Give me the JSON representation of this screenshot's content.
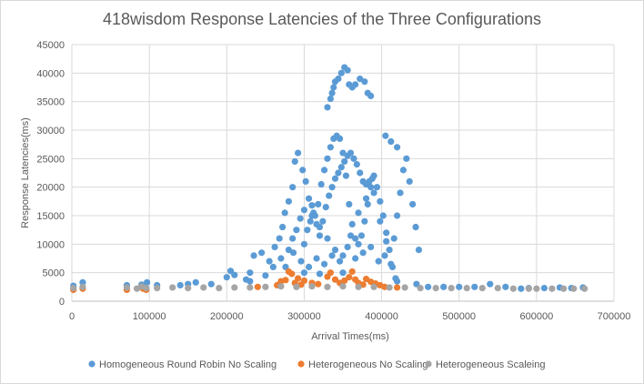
{
  "chart_data": {
    "type": "scatter",
    "title": "418wisdom Response Latencies of the Three Configurations",
    "xlabel": "Arrival Times(ms)",
    "ylabel": "Response Latencies(ms)",
    "xlim": [
      0,
      700000
    ],
    "ylim": [
      0,
      45000
    ],
    "x_ticks": [
      "0",
      "100000",
      "200000",
      "300000",
      "400000",
      "500000",
      "600000",
      "700000"
    ],
    "y_ticks": [
      "0",
      "5000",
      "10000",
      "15000",
      "20000",
      "25000",
      "30000",
      "35000",
      "40000",
      "45000"
    ],
    "grid": "horizontal and vertical",
    "legend_position": "bottom",
    "series": [
      {
        "name": "Homogeneous Round Robin No Scaling",
        "color": "#5B9BD5",
        "points": [
          [
            2000,
            2700
          ],
          [
            14000,
            3300
          ],
          [
            71000,
            2800
          ],
          [
            90000,
            2900
          ],
          [
            97000,
            3300
          ],
          [
            110000,
            2800
          ],
          [
            140000,
            2800
          ],
          [
            160000,
            3300
          ],
          [
            180000,
            3000
          ],
          [
            200000,
            4200
          ],
          [
            205000,
            5300
          ],
          [
            210000,
            4600
          ],
          [
            225000,
            3800
          ],
          [
            230000,
            5000
          ],
          [
            235000,
            8000
          ],
          [
            245000,
            8500
          ],
          [
            255000,
            7000
          ],
          [
            262000,
            9500
          ],
          [
            268000,
            11000
          ],
          [
            272000,
            13000
          ],
          [
            275000,
            15500
          ],
          [
            280000,
            17500
          ],
          [
            285000,
            20000
          ],
          [
            288000,
            24500
          ],
          [
            292000,
            26000
          ],
          [
            298000,
            23000
          ],
          [
            302000,
            21000
          ],
          [
            306000,
            18000
          ],
          [
            310000,
            16800
          ],
          [
            314000,
            15000
          ],
          [
            318000,
            17000
          ],
          [
            322000,
            20500
          ],
          [
            326000,
            23000
          ],
          [
            330000,
            25000
          ],
          [
            334000,
            27000
          ],
          [
            338000,
            28500
          ],
          [
            342000,
            29000
          ],
          [
            346000,
            28500
          ],
          [
            350000,
            26000
          ],
          [
            354000,
            22000
          ],
          [
            358000,
            17000
          ],
          [
            362000,
            13500
          ],
          [
            366000,
            11000
          ],
          [
            370000,
            10000
          ],
          [
            374000,
            11500
          ],
          [
            378000,
            14000
          ],
          [
            382000,
            17000
          ],
          [
            386000,
            20000
          ],
          [
            390000,
            22000
          ],
          [
            394000,
            20000
          ],
          [
            398000,
            17500
          ],
          [
            402000,
            15000
          ],
          [
            406000,
            12000
          ],
          [
            410000,
            9000
          ],
          [
            414000,
            6000
          ],
          [
            418000,
            4000
          ],
          [
            330000,
            34000
          ],
          [
            334000,
            35500
          ],
          [
            336000,
            36500
          ],
          [
            338000,
            37500
          ],
          [
            340000,
            38500
          ],
          [
            344000,
            39000
          ],
          [
            348000,
            40000
          ],
          [
            352000,
            41000
          ],
          [
            356000,
            40500
          ],
          [
            358000,
            38000
          ],
          [
            362000,
            37500
          ],
          [
            366000,
            38000
          ],
          [
            372000,
            39000
          ],
          [
            378000,
            38500
          ],
          [
            382000,
            36500
          ],
          [
            386000,
            36000
          ],
          [
            300000,
            10000
          ],
          [
            304000,
            12500
          ],
          [
            308000,
            14000
          ],
          [
            312000,
            15500
          ],
          [
            316000,
            13500
          ],
          [
            320000,
            11500
          ],
          [
            324000,
            14000
          ],
          [
            328000,
            16500
          ],
          [
            332000,
            18500
          ],
          [
            336000,
            20000
          ],
          [
            340000,
            21500
          ],
          [
            344000,
            22500
          ],
          [
            348000,
            23500
          ],
          [
            352000,
            24500
          ],
          [
            356000,
            25500
          ],
          [
            360000,
            26000
          ],
          [
            364000,
            25000
          ],
          [
            368000,
            24000
          ],
          [
            372000,
            22500
          ],
          [
            376000,
            21000
          ],
          [
            380000,
            20500
          ],
          [
            384000,
            21000
          ],
          [
            388000,
            21500
          ],
          [
            280000,
            9000
          ],
          [
            285000,
            11000
          ],
          [
            290000,
            12500
          ],
          [
            295000,
            14500
          ],
          [
            300000,
            16000
          ],
          [
            310000,
            15000
          ],
          [
            320000,
            13000
          ],
          [
            330000,
            11000
          ],
          [
            340000,
            9000
          ],
          [
            350000,
            8000
          ],
          [
            360000,
            11500
          ],
          [
            370000,
            15500
          ],
          [
            380000,
            18000
          ],
          [
            390000,
            19000
          ],
          [
            398000,
            14000
          ],
          [
            404000,
            8000
          ],
          [
            412000,
            6500
          ],
          [
            416000,
            11000
          ],
          [
            420000,
            15000
          ],
          [
            424000,
            19000
          ],
          [
            428000,
            23000
          ],
          [
            432000,
            25000
          ],
          [
            436000,
            21000
          ],
          [
            440000,
            17000
          ],
          [
            444000,
            13000
          ],
          [
            448000,
            9000
          ],
          [
            405000,
            29000
          ],
          [
            412000,
            28000
          ],
          [
            420000,
            27000
          ],
          [
            260000,
            6000
          ],
          [
            270000,
            7500
          ],
          [
            276000,
            6000
          ],
          [
            286000,
            8500
          ],
          [
            296000,
            7000
          ],
          [
            306000,
            6000
          ],
          [
            316000,
            7500
          ],
          [
            326000,
            6500
          ],
          [
            336000,
            8000
          ],
          [
            346000,
            7000
          ],
          [
            356000,
            9500
          ],
          [
            366000,
            7500
          ],
          [
            376000,
            8500
          ],
          [
            386000,
            9500
          ],
          [
            396000,
            7000
          ],
          [
            406000,
            10500
          ],
          [
            150000,
            3000
          ],
          [
            230000,
            3500
          ],
          [
            250000,
            4500
          ],
          [
            300000,
            5000
          ],
          [
            320000,
            4800
          ],
          [
            350000,
            5000
          ],
          [
            420000,
            3500
          ],
          [
            445000,
            3000
          ],
          [
            460000,
            2500
          ],
          [
            480000,
            2500
          ],
          [
            500000,
            2500
          ],
          [
            520000,
            2500
          ],
          [
            540000,
            3000
          ],
          [
            560000,
            2500
          ],
          [
            580000,
            2200
          ],
          [
            590000,
            2300
          ],
          [
            610000,
            2300
          ],
          [
            630000,
            2400
          ],
          [
            645000,
            2300
          ],
          [
            660000,
            2400
          ]
        ]
      },
      {
        "name": "Heterogeneous No Scaling",
        "color": "#ED7D31",
        "points": [
          [
            2000,
            2000
          ],
          [
            14000,
            2200
          ],
          [
            71000,
            2000
          ],
          [
            92000,
            2200
          ],
          [
            96000,
            2000
          ],
          [
            240000,
            2500
          ],
          [
            265000,
            2800
          ],
          [
            270000,
            3500
          ],
          [
            276000,
            3700
          ],
          [
            280000,
            5200
          ],
          [
            284000,
            4800
          ],
          [
            288000,
            3200
          ],
          [
            292000,
            4000
          ],
          [
            296000,
            2900
          ],
          [
            300000,
            3600
          ],
          [
            310000,
            3200
          ],
          [
            318000,
            3000
          ],
          [
            330000,
            4300
          ],
          [
            334000,
            5000
          ],
          [
            340000,
            3800
          ],
          [
            346000,
            3200
          ],
          [
            352000,
            3600
          ],
          [
            358000,
            4200
          ],
          [
            362000,
            5200
          ],
          [
            366000,
            3800
          ],
          [
            370000,
            3200
          ],
          [
            376000,
            2900
          ],
          [
            380000,
            3900
          ],
          [
            386000,
            3400
          ],
          [
            392000,
            3100
          ],
          [
            398000,
            2800
          ],
          [
            404000,
            2500
          ],
          [
            420000,
            2400
          ]
        ]
      },
      {
        "name": "Heterogeneous Scaleing",
        "color": "#A5A5A5",
        "points": [
          [
            2000,
            2300
          ],
          [
            14000,
            2500
          ],
          [
            71000,
            2400
          ],
          [
            84000,
            2200
          ],
          [
            90000,
            2600
          ],
          [
            96000,
            2300
          ],
          [
            110000,
            2300
          ],
          [
            130000,
            2400
          ],
          [
            150000,
            2300
          ],
          [
            170000,
            2400
          ],
          [
            190000,
            2300
          ],
          [
            210000,
            2400
          ],
          [
            230000,
            2400
          ],
          [
            250000,
            2500
          ],
          [
            270000,
            2600
          ],
          [
            290000,
            2500
          ],
          [
            310000,
            2600
          ],
          [
            330000,
            2500
          ],
          [
            350000,
            2600
          ],
          [
            370000,
            2500
          ],
          [
            390000,
            2500
          ],
          [
            410000,
            2400
          ],
          [
            430000,
            2400
          ],
          [
            450000,
            2300
          ],
          [
            470000,
            2300
          ],
          [
            490000,
            2300
          ],
          [
            510000,
            2300
          ],
          [
            530000,
            2300
          ],
          [
            550000,
            2300
          ],
          [
            570000,
            2200
          ],
          [
            590000,
            2200
          ],
          [
            600000,
            2200
          ],
          [
            620000,
            2200
          ],
          [
            635000,
            2200
          ],
          [
            648000,
            2200
          ],
          [
            662000,
            2200
          ]
        ]
      }
    ]
  }
}
